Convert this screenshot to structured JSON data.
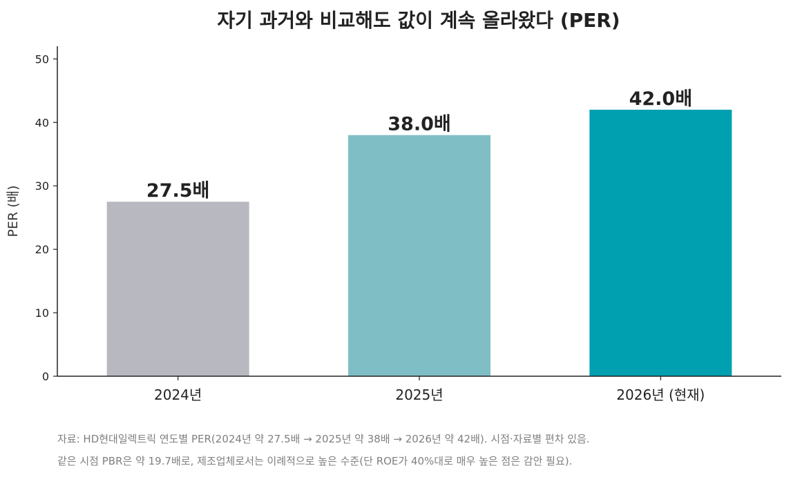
{
  "chart_data": {
    "type": "bar",
    "title": "자기 과거와 비교해도 값이 계속 올라왔다 (PER)",
    "ylabel": "PER (배)",
    "xlabel": "",
    "categories": [
      "2024년",
      "2025년",
      "2026년 (현재)"
    ],
    "values": [
      27.5,
      38.0,
      42.0
    ],
    "value_labels": [
      "27.5배",
      "38.0배",
      "42.0배"
    ],
    "bar_colors": [
      "#b8b8c0",
      "#80bec6",
      "#00a0b0"
    ],
    "ylim": [
      0,
      52
    ],
    "yticks": [
      0,
      10,
      20,
      30,
      40,
      50
    ],
    "grid": false,
    "legend": "none"
  },
  "notes": [
    "자료: HD현대일렉트릭 연도별 PER(2024년 약 27.5배 → 2025년 약 38배 → 2026년 약 42배). 시점·자료별 편차 있음.",
    "같은 시점 PBR은 약 19.7배로, 제조업체로서는 이례적으로 높은 수준(단 ROE가 40%대로 매우 높은 점은 감안 필요)."
  ]
}
